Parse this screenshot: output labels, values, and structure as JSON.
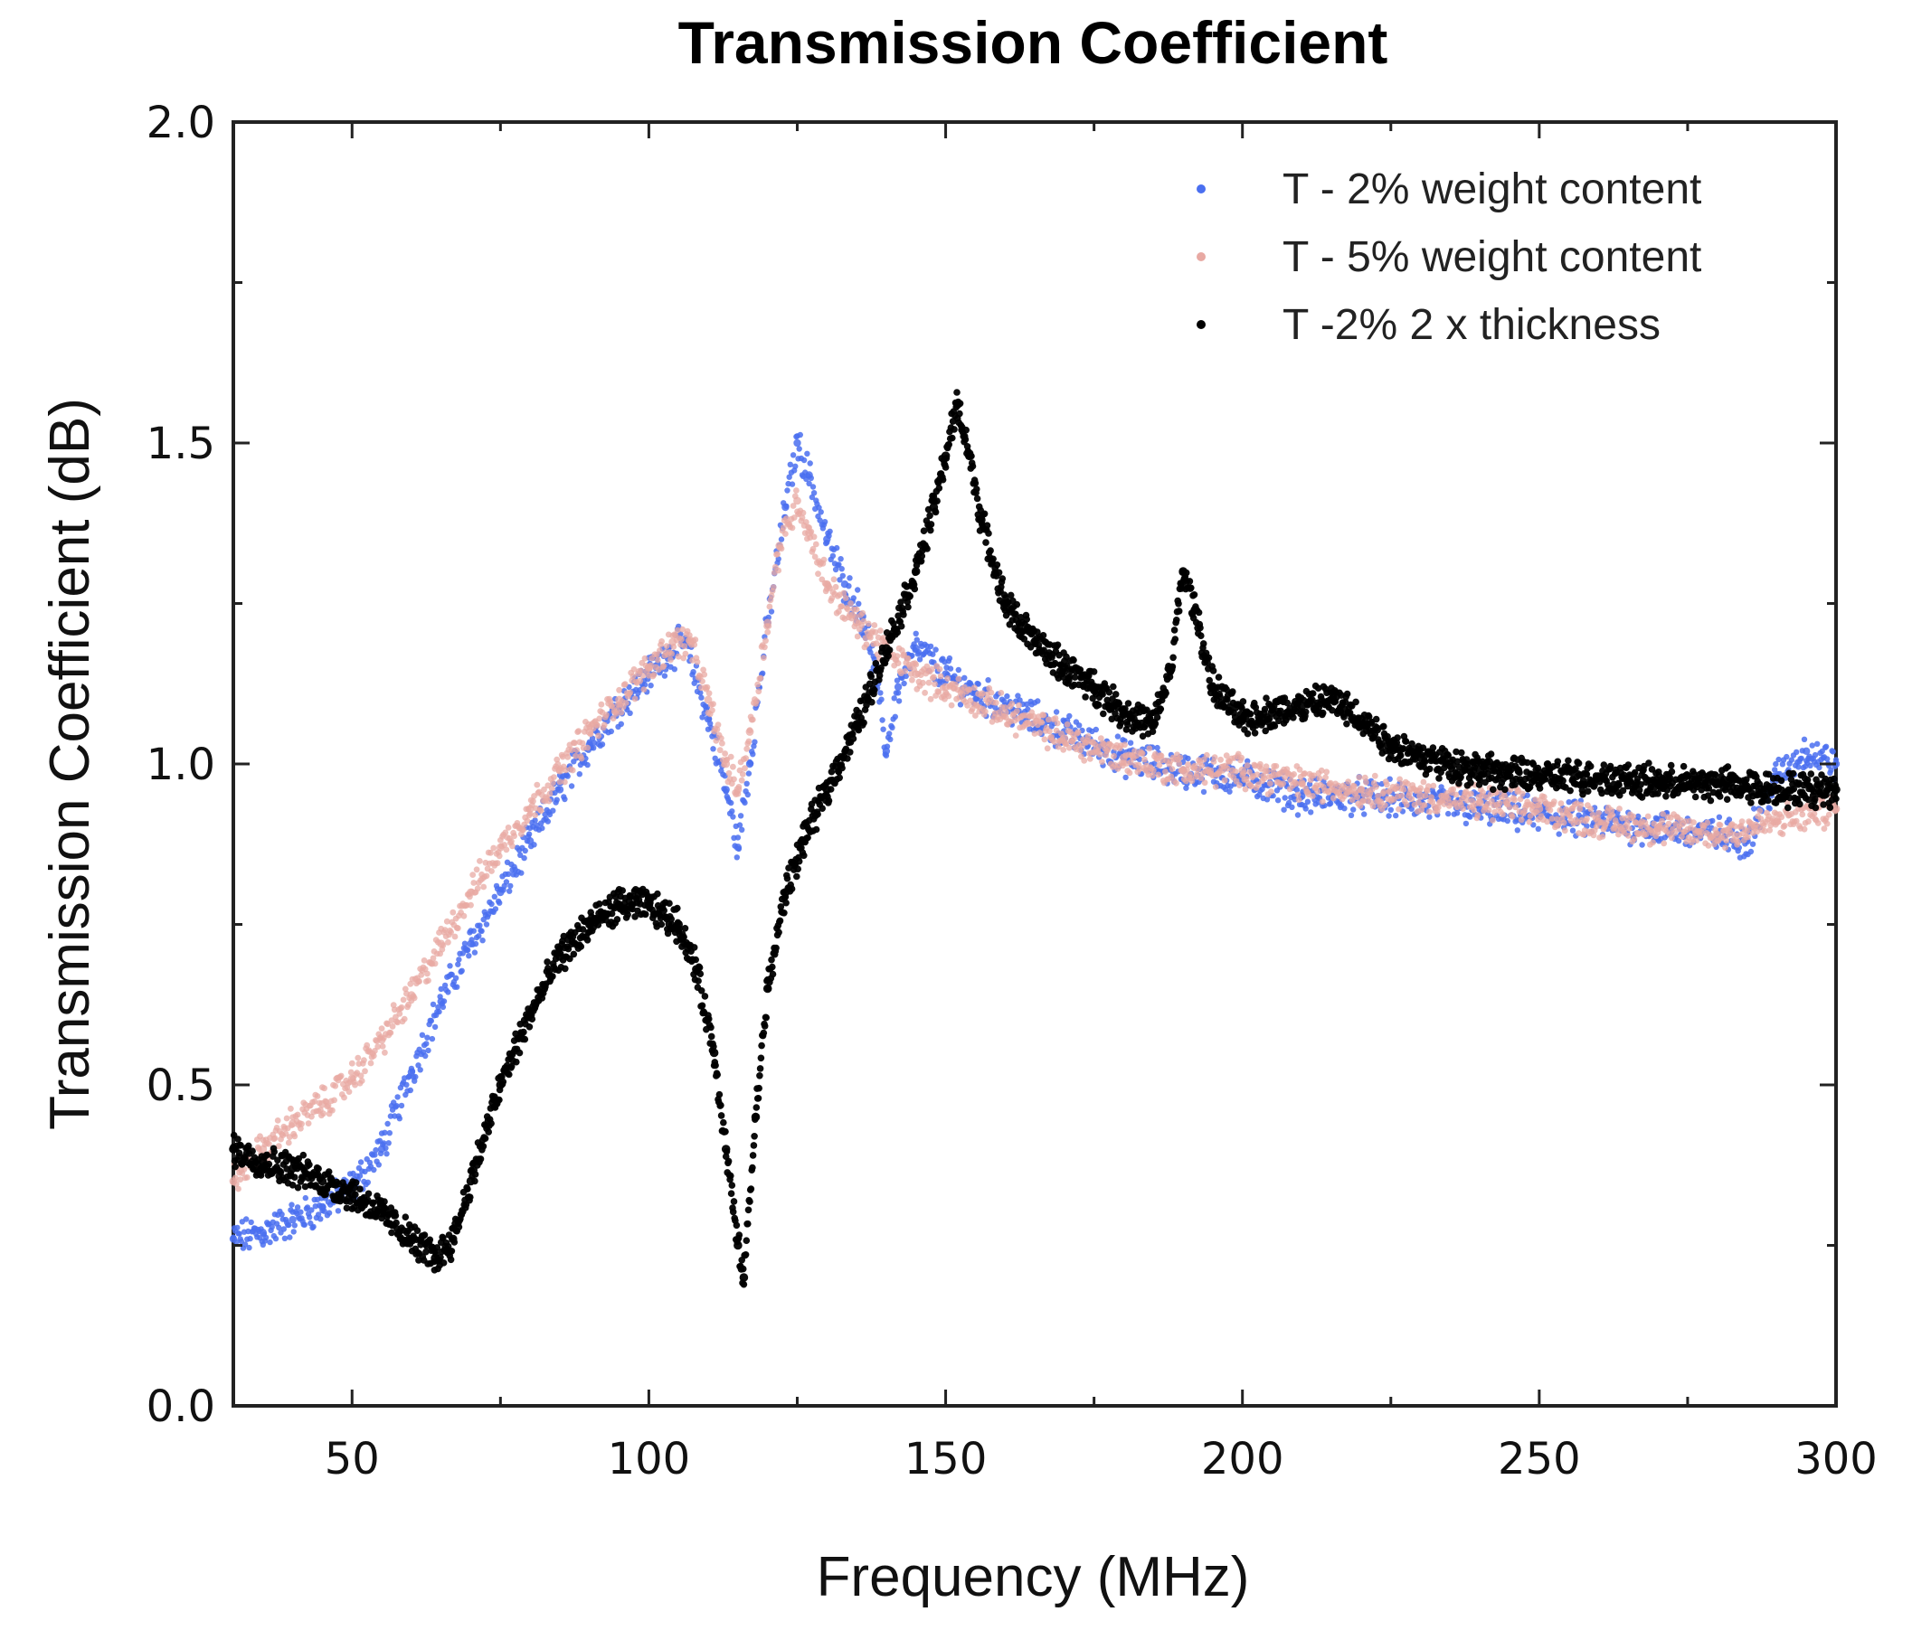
{
  "chart_data": {
    "type": "scatter",
    "title": "Transmission Coefficient",
    "xlabel": "Frequency (MHz)",
    "ylabel": "Transmission Coefficient (dB)",
    "xlim": [
      30,
      300
    ],
    "ylim": [
      0.0,
      2.0
    ],
    "xticks": [
      50,
      100,
      150,
      200,
      250,
      300
    ],
    "xtick_labels": [
      "50",
      "100",
      "150",
      "200",
      "250",
      "300"
    ],
    "yticks": [
      0.0,
      0.5,
      1.0,
      1.5,
      2.0
    ],
    "ytick_labels": [
      "0.0",
      "0.5",
      "1.0",
      "1.5",
      "2.0"
    ],
    "grid": false,
    "legend_position": "top-right",
    "series": [
      {
        "name": "T - 2% weight content",
        "color": "#4a6ff0",
        "points": [
          [
            30,
            0.26
          ],
          [
            35,
            0.27
          ],
          [
            40,
            0.29
          ],
          [
            45,
            0.31
          ],
          [
            50,
            0.34
          ],
          [
            55,
            0.4
          ],
          [
            60,
            0.52
          ],
          [
            65,
            0.63
          ],
          [
            70,
            0.72
          ],
          [
            75,
            0.8
          ],
          [
            80,
            0.88
          ],
          [
            85,
            0.96
          ],
          [
            90,
            1.03
          ],
          [
            95,
            1.09
          ],
          [
            100,
            1.14
          ],
          [
            103,
            1.17
          ],
          [
            106,
            1.19
          ],
          [
            110,
            1.07
          ],
          [
            113,
            0.96
          ],
          [
            115,
            0.87
          ],
          [
            117,
            1.0
          ],
          [
            120,
            1.22
          ],
          [
            123,
            1.4
          ],
          [
            125,
            1.5
          ],
          [
            127,
            1.45
          ],
          [
            130,
            1.35
          ],
          [
            133,
            1.28
          ],
          [
            136,
            1.23
          ],
          [
            138,
            1.15
          ],
          [
            140,
            1.02
          ],
          [
            142,
            1.12
          ],
          [
            145,
            1.18
          ],
          [
            150,
            1.14
          ],
          [
            155,
            1.11
          ],
          [
            160,
            1.09
          ],
          [
            170,
            1.05
          ],
          [
            180,
            1.01
          ],
          [
            190,
            0.99
          ],
          [
            200,
            0.98
          ],
          [
            210,
            0.95
          ],
          [
            220,
            0.95
          ],
          [
            230,
            0.94
          ],
          [
            240,
            0.93
          ],
          [
            250,
            0.92
          ],
          [
            260,
            0.91
          ],
          [
            270,
            0.9
          ],
          [
            280,
            0.89
          ],
          [
            285,
            0.88
          ],
          [
            290,
            0.98
          ],
          [
            295,
            1.02
          ],
          [
            300,
            1.0
          ]
        ]
      },
      {
        "name": "T - 5% weight content",
        "color": "#e8a9a3",
        "points": [
          [
            30,
            0.35
          ],
          [
            35,
            0.4
          ],
          [
            40,
            0.44
          ],
          [
            45,
            0.47
          ],
          [
            50,
            0.51
          ],
          [
            55,
            0.57
          ],
          [
            60,
            0.64
          ],
          [
            65,
            0.72
          ],
          [
            70,
            0.8
          ],
          [
            75,
            0.87
          ],
          [
            80,
            0.93
          ],
          [
            85,
            0.99
          ],
          [
            90,
            1.05
          ],
          [
            95,
            1.1
          ],
          [
            100,
            1.15
          ],
          [
            104,
            1.19
          ],
          [
            107,
            1.19
          ],
          [
            110,
            1.1
          ],
          [
            113,
            1.0
          ],
          [
            115,
            0.96
          ],
          [
            117,
            1.05
          ],
          [
            120,
            1.22
          ],
          [
            122,
            1.34
          ],
          [
            125,
            1.41
          ],
          [
            127,
            1.36
          ],
          [
            130,
            1.28
          ],
          [
            135,
            1.22
          ],
          [
            140,
            1.18
          ],
          [
            145,
            1.14
          ],
          [
            150,
            1.12
          ],
          [
            160,
            1.08
          ],
          [
            170,
            1.04
          ],
          [
            180,
            1.01
          ],
          [
            190,
            0.99
          ],
          [
            200,
            0.99
          ],
          [
            210,
            0.97
          ],
          [
            220,
            0.96
          ],
          [
            230,
            0.95
          ],
          [
            240,
            0.94
          ],
          [
            250,
            0.93
          ],
          [
            260,
            0.91
          ],
          [
            270,
            0.9
          ],
          [
            280,
            0.89
          ],
          [
            290,
            0.91
          ],
          [
            300,
            0.93
          ]
        ]
      },
      {
        "name": "T -2% 2 x thickness",
        "color": "#000000",
        "points": [
          [
            30,
            0.4
          ],
          [
            35,
            0.38
          ],
          [
            40,
            0.37
          ],
          [
            45,
            0.35
          ],
          [
            50,
            0.33
          ],
          [
            55,
            0.3
          ],
          [
            60,
            0.26
          ],
          [
            64,
            0.23
          ],
          [
            67,
            0.26
          ],
          [
            70,
            0.35
          ],
          [
            75,
            0.5
          ],
          [
            80,
            0.61
          ],
          [
            85,
            0.7
          ],
          [
            90,
            0.75
          ],
          [
            95,
            0.78
          ],
          [
            100,
            0.78
          ],
          [
            105,
            0.75
          ],
          [
            108,
            0.68
          ],
          [
            111,
            0.55
          ],
          [
            113,
            0.4
          ],
          [
            115,
            0.25
          ],
          [
            116,
            0.2
          ],
          [
            118,
            0.45
          ],
          [
            120,
            0.65
          ],
          [
            123,
            0.8
          ],
          [
            126,
            0.88
          ],
          [
            130,
            0.96
          ],
          [
            135,
            1.06
          ],
          [
            140,
            1.18
          ],
          [
            145,
            1.3
          ],
          [
            148,
            1.4
          ],
          [
            150,
            1.48
          ],
          [
            152,
            1.56
          ],
          [
            154,
            1.48
          ],
          [
            156,
            1.38
          ],
          [
            160,
            1.25
          ],
          [
            165,
            1.19
          ],
          [
            170,
            1.15
          ],
          [
            175,
            1.12
          ],
          [
            180,
            1.08
          ],
          [
            185,
            1.06
          ],
          [
            188,
            1.15
          ],
          [
            190,
            1.3
          ],
          [
            192,
            1.24
          ],
          [
            195,
            1.12
          ],
          [
            200,
            1.07
          ],
          [
            205,
            1.08
          ],
          [
            210,
            1.09
          ],
          [
            215,
            1.1
          ],
          [
            220,
            1.07
          ],
          [
            225,
            1.03
          ],
          [
            230,
            1.01
          ],
          [
            240,
            0.99
          ],
          [
            250,
            0.98
          ],
          [
            260,
            0.98
          ],
          [
            270,
            0.97
          ],
          [
            280,
            0.97
          ],
          [
            290,
            0.96
          ],
          [
            300,
            0.96
          ]
        ]
      }
    ]
  }
}
